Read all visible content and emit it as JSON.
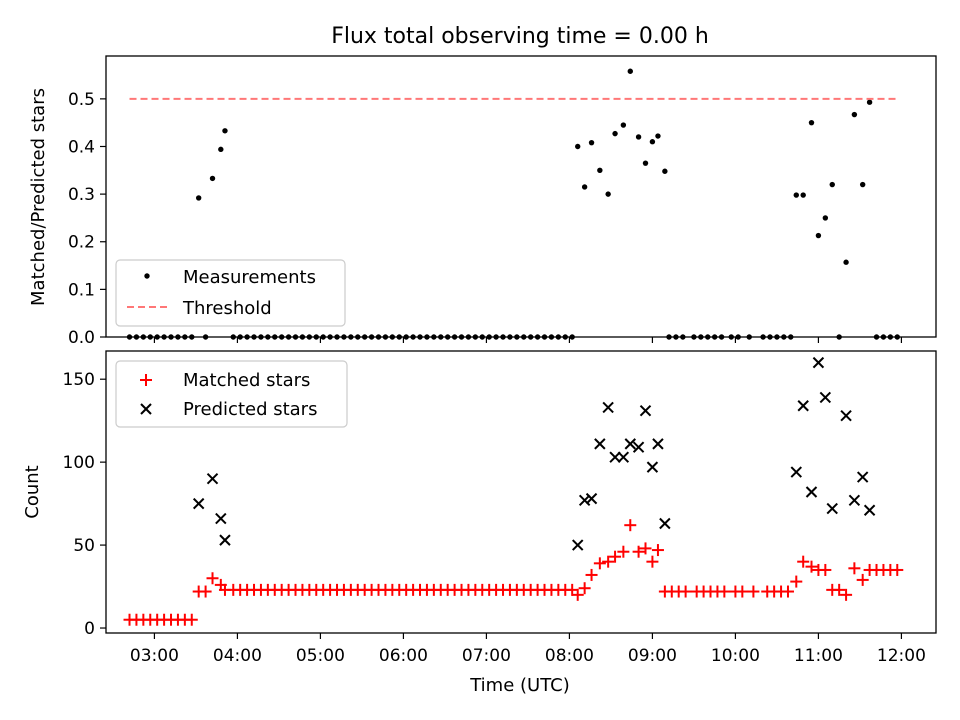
{
  "figure": {
    "title": "Flux total observing time = 0.00 h"
  },
  "colors": {
    "measurement": "#000000",
    "threshold": "#ff7777",
    "matched": "#ff0000",
    "predicted": "#000000"
  },
  "chart_data": [
    {
      "type": "scatter",
      "title": "Flux total observing time = 0.00 h",
      "xlabel": "",
      "ylabel": "Matched/Predicted stars",
      "ylim": [
        0,
        0.59
      ],
      "xlim": [
        "02:25",
        "12:25"
      ],
      "xticks": [
        "03:00",
        "04:00",
        "05:00",
        "06:00",
        "07:00",
        "08:00",
        "09:00",
        "10:00",
        "11:00",
        "12:00"
      ],
      "show_x_tick_labels": false,
      "yticks": [
        "0.0",
        "0.1",
        "0.2",
        "0.3",
        "0.4",
        "0.5"
      ],
      "ytick_values": [
        0,
        0.1,
        0.2,
        0.3,
        0.4,
        0.5
      ],
      "grid": false,
      "legend": {
        "placement": "lower-left",
        "entries": [
          "Measurements",
          "Threshold"
        ]
      },
      "series": [
        {
          "name": "Measurements",
          "marker": "dot",
          "points": [
            [
              "02:42",
              0
            ],
            [
              "02:47",
              0
            ],
            [
              "02:52",
              0
            ],
            [
              "02:57",
              0
            ],
            [
              "03:02",
              0
            ],
            [
              "03:07",
              0
            ],
            [
              "03:12",
              0
            ],
            [
              "03:17",
              0
            ],
            [
              "03:22",
              0
            ],
            [
              "03:27",
              0
            ],
            [
              "03:32",
              0.292
            ],
            [
              "03:37",
              0
            ],
            [
              "03:42",
              0.333
            ],
            [
              "03:48",
              0.394
            ],
            [
              "03:51",
              0.433
            ],
            [
              "03:57",
              0
            ],
            [
              "04:02",
              0
            ],
            [
              "04:07",
              0
            ],
            [
              "04:12",
              0
            ],
            [
              "04:17",
              0
            ],
            [
              "04:22",
              0
            ],
            [
              "04:27",
              0
            ],
            [
              "04:32",
              0
            ],
            [
              "04:37",
              0
            ],
            [
              "04:42",
              0
            ],
            [
              "04:47",
              0
            ],
            [
              "04:52",
              0
            ],
            [
              "04:57",
              0
            ],
            [
              "05:02",
              0
            ],
            [
              "05:07",
              0
            ],
            [
              "05:12",
              0
            ],
            [
              "05:17",
              0
            ],
            [
              "05:22",
              0
            ],
            [
              "05:27",
              0
            ],
            [
              "05:32",
              0
            ],
            [
              "05:37",
              0
            ],
            [
              "05:42",
              0
            ],
            [
              "05:47",
              0
            ],
            [
              "05:52",
              0
            ],
            [
              "05:57",
              0
            ],
            [
              "06:02",
              0
            ],
            [
              "06:07",
              0
            ],
            [
              "06:12",
              0
            ],
            [
              "06:17",
              0
            ],
            [
              "06:22",
              0
            ],
            [
              "06:27",
              0
            ],
            [
              "06:32",
              0
            ],
            [
              "06:37",
              0
            ],
            [
              "06:42",
              0
            ],
            [
              "06:47",
              0
            ],
            [
              "06:52",
              0
            ],
            [
              "06:57",
              0
            ],
            [
              "07:02",
              0
            ],
            [
              "07:07",
              0
            ],
            [
              "07:12",
              0
            ],
            [
              "07:17",
              0
            ],
            [
              "07:22",
              0
            ],
            [
              "07:27",
              0
            ],
            [
              "07:32",
              0
            ],
            [
              "07:37",
              0
            ],
            [
              "07:42",
              0
            ],
            [
              "07:47",
              0
            ],
            [
              "07:52",
              0
            ],
            [
              "07:57",
              0
            ],
            [
              "08:02",
              0
            ],
            [
              "08:06",
              0.4
            ],
            [
              "08:11",
              0.315
            ],
            [
              "08:16",
              0.408
            ],
            [
              "08:22",
              0.35
            ],
            [
              "08:28",
              0.3
            ],
            [
              "08:33",
              0.427
            ],
            [
              "08:39",
              0.445
            ],
            [
              "08:44",
              0.558
            ],
            [
              "08:50",
              0.42
            ],
            [
              "08:55",
              0.365
            ],
            [
              "09:00",
              0.41
            ],
            [
              "09:04",
              0.422
            ],
            [
              "09:09",
              0.348
            ],
            [
              "09:12",
              0
            ],
            [
              "09:17",
              0
            ],
            [
              "09:22",
              0
            ],
            [
              "09:30",
              0
            ],
            [
              "09:35",
              0
            ],
            [
              "09:40",
              0
            ],
            [
              "09:45",
              0
            ],
            [
              "09:50",
              0
            ],
            [
              "09:57",
              0
            ],
            [
              "10:02",
              0
            ],
            [
              "10:10",
              0
            ],
            [
              "10:20",
              0
            ],
            [
              "10:25",
              0
            ],
            [
              "10:30",
              0
            ],
            [
              "10:35",
              0
            ],
            [
              "10:40",
              0
            ],
            [
              "10:44",
              0.298
            ],
            [
              "10:49",
              0.298
            ],
            [
              "10:55",
              0.45
            ],
            [
              "11:00",
              0.213
            ],
            [
              "11:05",
              0.25
            ],
            [
              "11:10",
              0.32
            ],
            [
              "11:15",
              0
            ],
            [
              "11:20",
              0.157
            ],
            [
              "11:26",
              0.467
            ],
            [
              "11:32",
              0.32
            ],
            [
              "11:37",
              0.493
            ],
            [
              "11:42",
              0
            ],
            [
              "11:47",
              0
            ],
            [
              "11:52",
              0
            ],
            [
              "11:57",
              0
            ]
          ]
        },
        {
          "name": "Threshold",
          "marker": "dashed-line",
          "points": [
            [
              "02:42",
              0.5
            ],
            [
              "11:57",
              0.5
            ]
          ]
        }
      ]
    },
    {
      "type": "scatter",
      "title": "",
      "xlabel": "Time (UTC)",
      "ylabel": "Count",
      "ylim": [
        -3,
        167
      ],
      "xlim": [
        "02:25",
        "12:25"
      ],
      "xticks": [
        "03:00",
        "04:00",
        "05:00",
        "06:00",
        "07:00",
        "08:00",
        "09:00",
        "10:00",
        "11:00",
        "12:00"
      ],
      "show_x_tick_labels": true,
      "yticks": [
        "0",
        "50",
        "100",
        "150"
      ],
      "ytick_values": [
        0,
        50,
        100,
        150
      ],
      "grid": false,
      "legend": {
        "placement": "upper-left",
        "entries": [
          "Matched stars",
          "Predicted stars"
        ]
      },
      "series": [
        {
          "name": "Matched stars",
          "marker": "plus",
          "points": [
            [
              "02:42",
              5
            ],
            [
              "02:47",
              5
            ],
            [
              "02:52",
              5
            ],
            [
              "02:57",
              5
            ],
            [
              "03:02",
              5
            ],
            [
              "03:07",
              5
            ],
            [
              "03:12",
              5
            ],
            [
              "03:17",
              5
            ],
            [
              "03:22",
              5
            ],
            [
              "03:27",
              5
            ],
            [
              "03:32",
              22
            ],
            [
              "03:37",
              22
            ],
            [
              "03:42",
              30
            ],
            [
              "03:48",
              26
            ],
            [
              "03:51",
              23
            ],
            [
              "03:57",
              23
            ],
            [
              "04:02",
              23
            ],
            [
              "04:07",
              23
            ],
            [
              "04:12",
              23
            ],
            [
              "04:17",
              23
            ],
            [
              "04:22",
              23
            ],
            [
              "04:27",
              23
            ],
            [
              "04:32",
              23
            ],
            [
              "04:37",
              23
            ],
            [
              "04:42",
              23
            ],
            [
              "04:47",
              23
            ],
            [
              "04:52",
              23
            ],
            [
              "04:57",
              23
            ],
            [
              "05:02",
              23
            ],
            [
              "05:07",
              23
            ],
            [
              "05:12",
              23
            ],
            [
              "05:17",
              23
            ],
            [
              "05:22",
              23
            ],
            [
              "05:27",
              23
            ],
            [
              "05:32",
              23
            ],
            [
              "05:37",
              23
            ],
            [
              "05:42",
              23
            ],
            [
              "05:47",
              23
            ],
            [
              "05:52",
              23
            ],
            [
              "05:57",
              23
            ],
            [
              "06:02",
              23
            ],
            [
              "06:07",
              23
            ],
            [
              "06:12",
              23
            ],
            [
              "06:17",
              23
            ],
            [
              "06:22",
              23
            ],
            [
              "06:27",
              23
            ],
            [
              "06:32",
              23
            ],
            [
              "06:37",
              23
            ],
            [
              "06:42",
              23
            ],
            [
              "06:47",
              23
            ],
            [
              "06:52",
              23
            ],
            [
              "06:57",
              23
            ],
            [
              "07:02",
              23
            ],
            [
              "07:07",
              23
            ],
            [
              "07:12",
              23
            ],
            [
              "07:17",
              23
            ],
            [
              "07:22",
              23
            ],
            [
              "07:27",
              23
            ],
            [
              "07:32",
              23
            ],
            [
              "07:37",
              23
            ],
            [
              "07:42",
              23
            ],
            [
              "07:47",
              23
            ],
            [
              "07:52",
              23
            ],
            [
              "07:57",
              23
            ],
            [
              "08:02",
              23
            ],
            [
              "08:06",
              20
            ],
            [
              "08:11",
              24
            ],
            [
              "08:16",
              32
            ],
            [
              "08:22",
              39
            ],
            [
              "08:28",
              40
            ],
            [
              "08:33",
              43
            ],
            [
              "08:39",
              46
            ],
            [
              "08:44",
              62
            ],
            [
              "08:50",
              46
            ],
            [
              "08:55",
              48
            ],
            [
              "09:00",
              40
            ],
            [
              "09:04",
              47
            ],
            [
              "09:09",
              22
            ],
            [
              "09:14",
              22
            ],
            [
              "09:19",
              22
            ],
            [
              "09:24",
              22
            ],
            [
              "09:32",
              22
            ],
            [
              "09:37",
              22
            ],
            [
              "09:42",
              22
            ],
            [
              "09:47",
              22
            ],
            [
              "09:52",
              22
            ],
            [
              "10:00",
              22
            ],
            [
              "10:05",
              22
            ],
            [
              "10:13",
              22
            ],
            [
              "10:23",
              22
            ],
            [
              "10:28",
              22
            ],
            [
              "10:33",
              22
            ],
            [
              "10:38",
              22
            ],
            [
              "10:44",
              28
            ],
            [
              "10:49",
              40
            ],
            [
              "10:55",
              37
            ],
            [
              "11:00",
              35
            ],
            [
              "11:05",
              35
            ],
            [
              "11:10",
              23
            ],
            [
              "11:15",
              23
            ],
            [
              "11:20",
              20
            ],
            [
              "11:26",
              36
            ],
            [
              "11:32",
              29
            ],
            [
              "11:37",
              35
            ],
            [
              "11:42",
              35
            ],
            [
              "11:47",
              35
            ],
            [
              "11:52",
              35
            ],
            [
              "11:57",
              35
            ]
          ]
        },
        {
          "name": "Predicted stars",
          "marker": "x",
          "points": [
            [
              "03:32",
              75
            ],
            [
              "03:42",
              90
            ],
            [
              "03:48",
              66
            ],
            [
              "03:51",
              53
            ],
            [
              "08:06",
              50
            ],
            [
              "08:11",
              77
            ],
            [
              "08:16",
              78
            ],
            [
              "08:22",
              111
            ],
            [
              "08:28",
              133
            ],
            [
              "08:33",
              103
            ],
            [
              "08:39",
              103
            ],
            [
              "08:44",
              111
            ],
            [
              "08:50",
              109
            ],
            [
              "08:55",
              131
            ],
            [
              "09:00",
              97
            ],
            [
              "09:04",
              111
            ],
            [
              "09:09",
              63
            ],
            [
              "10:44",
              94
            ],
            [
              "10:49",
              134
            ],
            [
              "10:55",
              82
            ],
            [
              "11:00",
              160
            ],
            [
              "11:05",
              139
            ],
            [
              "11:10",
              72
            ],
            [
              "11:20",
              128
            ],
            [
              "11:26",
              77
            ],
            [
              "11:32",
              91
            ],
            [
              "11:37",
              71
            ]
          ]
        }
      ]
    }
  ]
}
